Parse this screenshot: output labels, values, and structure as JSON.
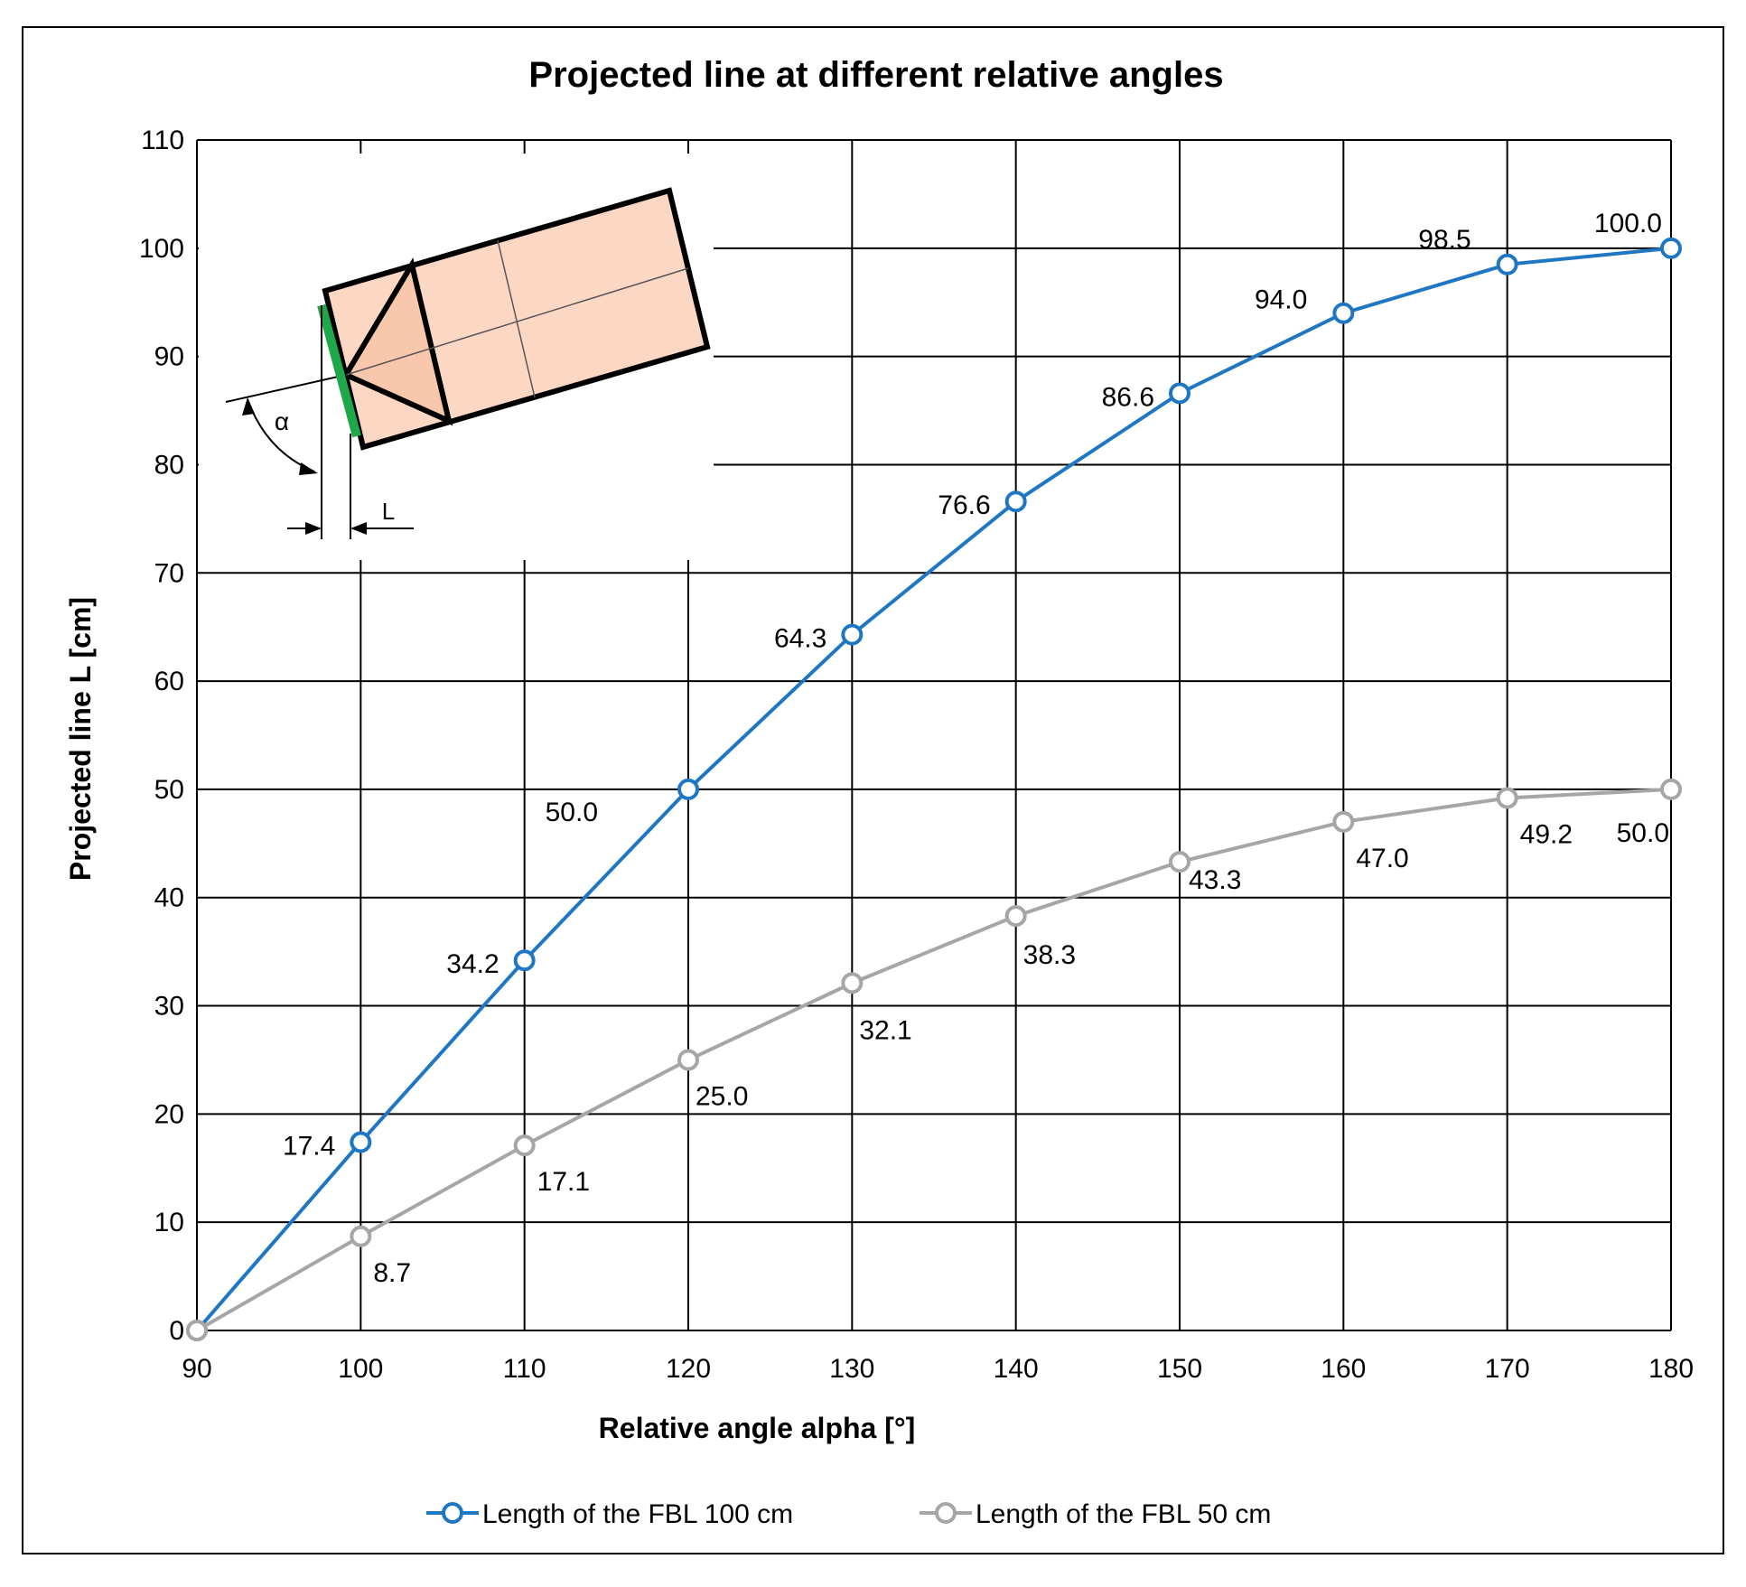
{
  "chart_data": {
    "type": "line",
    "title": "Projected line at different relative angles",
    "xlabel": "Relative angle alpha [°]",
    "ylabel": "Projected line L [cm]",
    "xlim": [
      90,
      180
    ],
    "ylim": [
      0,
      110
    ],
    "xticks": [
      90,
      100,
      110,
      120,
      130,
      140,
      150,
      160,
      170,
      180
    ],
    "yticks": [
      0,
      10,
      20,
      30,
      40,
      50,
      60,
      70,
      80,
      90,
      100,
      110
    ],
    "grid": true,
    "legend_position": "bottom",
    "x": [
      90,
      100,
      110,
      120,
      130,
      140,
      150,
      160,
      170,
      180
    ],
    "series": [
      {
        "name": "Length of the FBL 100 cm",
        "color": "#1f77c4",
        "values": [
          0,
          17.4,
          34.2,
          50.0,
          64.3,
          76.6,
          86.6,
          94.0,
          98.5,
          100.0
        ],
        "labels": [
          "",
          "17.4",
          "34.2",
          "50.0",
          "64.3",
          "76.6",
          "86.6",
          "94.0",
          "98.5",
          "100.0"
        ]
      },
      {
        "name": "Length of the FBL 50 cm",
        "color": "#a6a6a6",
        "values": [
          0,
          8.7,
          17.1,
          25.0,
          32.1,
          38.3,
          43.3,
          47.0,
          49.2,
          50.0
        ],
        "labels": [
          "",
          "8.7",
          "17.1",
          "25.0",
          "32.1",
          "38.3",
          "43.3",
          "47.0",
          "49.2",
          "50.0"
        ]
      }
    ],
    "inset": {
      "angle_symbol": "α",
      "length_symbol": "L",
      "fill_color": "#fcd8c4",
      "highlight_color": "#1fa84a"
    }
  }
}
